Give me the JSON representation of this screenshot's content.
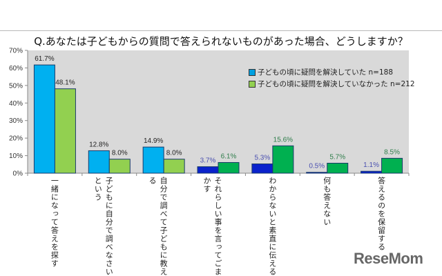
{
  "chart_data": {
    "type": "bar",
    "title": "Q.あなたは子どもからの質問で答えられないものがあった場合、どうしますか？",
    "categories": [
      "一緒になって答えを探す",
      "子どもに自分で調べなさいという",
      "自分で調べて子どもに教える",
      "それらしい事を言ってごまかす",
      "わからないと素直に伝える",
      "何も答えない",
      "答えるのを保留する"
    ],
    "series": [
      {
        "name": "子どもの頃に疑問を解決していた n=188",
        "values": [
          61.7,
          12.8,
          14.9,
          3.7,
          5.3,
          0.5,
          1.1
        ],
        "colors": [
          "#00b0f0",
          "#00b0f0",
          "#00b0f0",
          "#0a22cc",
          "#0a22cc",
          "#0a22cc",
          "#0a22cc"
        ],
        "label_color": "#4a50b0"
      },
      {
        "name": "子どもの頃に疑問を解決していなかった n=212",
        "values": [
          48.1,
          8.0,
          8.0,
          6.1,
          15.6,
          5.7,
          8.5
        ],
        "colors": [
          "#92d050",
          "#92d050",
          "#92d050",
          "#00b050",
          "#00b050",
          "#00b050",
          "#00b050"
        ],
        "label_color": "#2e7d4a"
      }
    ],
    "data_labels": [
      [
        "61.7%",
        "12.8%",
        "14.9%",
        "3.7%",
        "5.3%",
        "0.5%",
        "1.1%"
      ],
      [
        "48.1%",
        "8.0%",
        "8.0%",
        "6.1%",
        "15.6%",
        "5.7%",
        "8.5%"
      ]
    ],
    "yticks": [
      "0%",
      "10%",
      "20%",
      "30%",
      "40%",
      "50%",
      "60%",
      "70%"
    ],
    "ylim": [
      0,
      70
    ],
    "grid": false,
    "legend": "top-right",
    "legend_colors": [
      "#00a0e0",
      "#92d050"
    ],
    "plot_background": "#d9d9d9"
  },
  "watermark": "ReseMom"
}
